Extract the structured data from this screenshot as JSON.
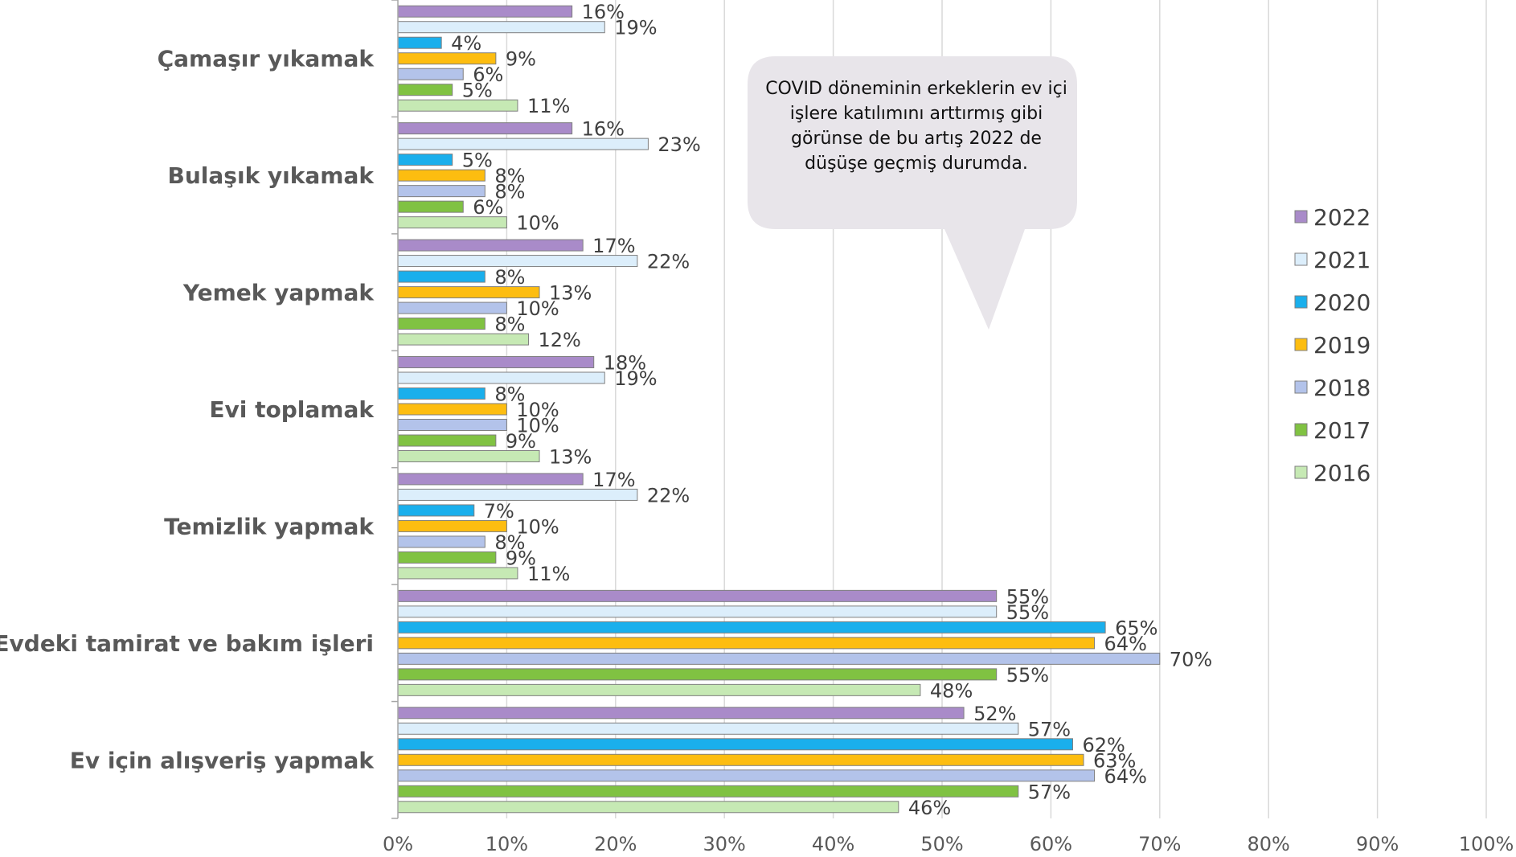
{
  "chart_data": {
    "type": "bar",
    "orientation": "horizontal",
    "categories": [
      "Çamaşır yıkamak",
      "Bulaşık yıkamak",
      "Yemek yapmak",
      "Evi toplamak",
      "Temizlik yapmak",
      "Evdeki tamirat ve bakım işleri",
      "Ev için alışveriş yapmak"
    ],
    "series": [
      {
        "name": "2022",
        "color": "#a98bc9",
        "values": [
          16,
          16,
          17,
          18,
          17,
          55,
          52
        ],
        "labels": [
          "16%",
          "16%",
          "17%",
          "18%",
          "17%",
          "55%",
          "52%"
        ]
      },
      {
        "name": "2021",
        "color": "#dceefb",
        "values": [
          19,
          23,
          22,
          19,
          22,
          55,
          57
        ],
        "labels": [
          "19%",
          "23%",
          "22%",
          "19%",
          "22%",
          "55%",
          "57%"
        ]
      },
      {
        "name": "2020",
        "color": "#1aafec",
        "values": [
          4,
          5,
          8,
          8,
          7,
          65,
          62
        ],
        "labels": [
          "4%",
          "5%",
          "8%",
          "8%",
          "7%",
          "65%",
          "62%"
        ]
      },
      {
        "name": "2019",
        "color": "#fdbd10",
        "values": [
          9,
          8,
          13,
          10,
          10,
          64,
          63
        ],
        "labels": [
          "9%",
          "8%",
          "13%",
          "10%",
          "10%",
          "64%",
          "63%"
        ]
      },
      {
        "name": "2018",
        "color": "#b3c3ea",
        "values": [
          6,
          8,
          10,
          10,
          8,
          70,
          64
        ],
        "labels": [
          "6%",
          "8%",
          "10%",
          "10%",
          "8%",
          "70%",
          "64%"
        ]
      },
      {
        "name": "2017",
        "color": "#80c242",
        "values": [
          5,
          6,
          8,
          9,
          9,
          55,
          57
        ],
        "labels": [
          "5%",
          "6%",
          "8%",
          "9%",
          "9%",
          "55%",
          "57%"
        ]
      },
      {
        "name": "2016",
        "color": "#c6e9b4",
        "values": [
          11,
          10,
          12,
          13,
          11,
          48,
          46
        ],
        "labels": [
          "11%",
          "10%",
          "12%",
          "13%",
          "11%",
          "48%",
          "46%"
        ]
      }
    ],
    "xlim": [
      0,
      100
    ],
    "x_ticks": [
      "0%",
      "10%",
      "20%",
      "30%",
      "40%",
      "50%",
      "60%",
      "70%",
      "80%",
      "90%",
      "100%"
    ],
    "grid": true,
    "legend_position": "right",
    "annotation": "COVID döneminin erkeklerin ev içi işlere katılımını arttırmış gibi görünse de bu artış 2022 de düşüşe geçmiş durumda."
  }
}
